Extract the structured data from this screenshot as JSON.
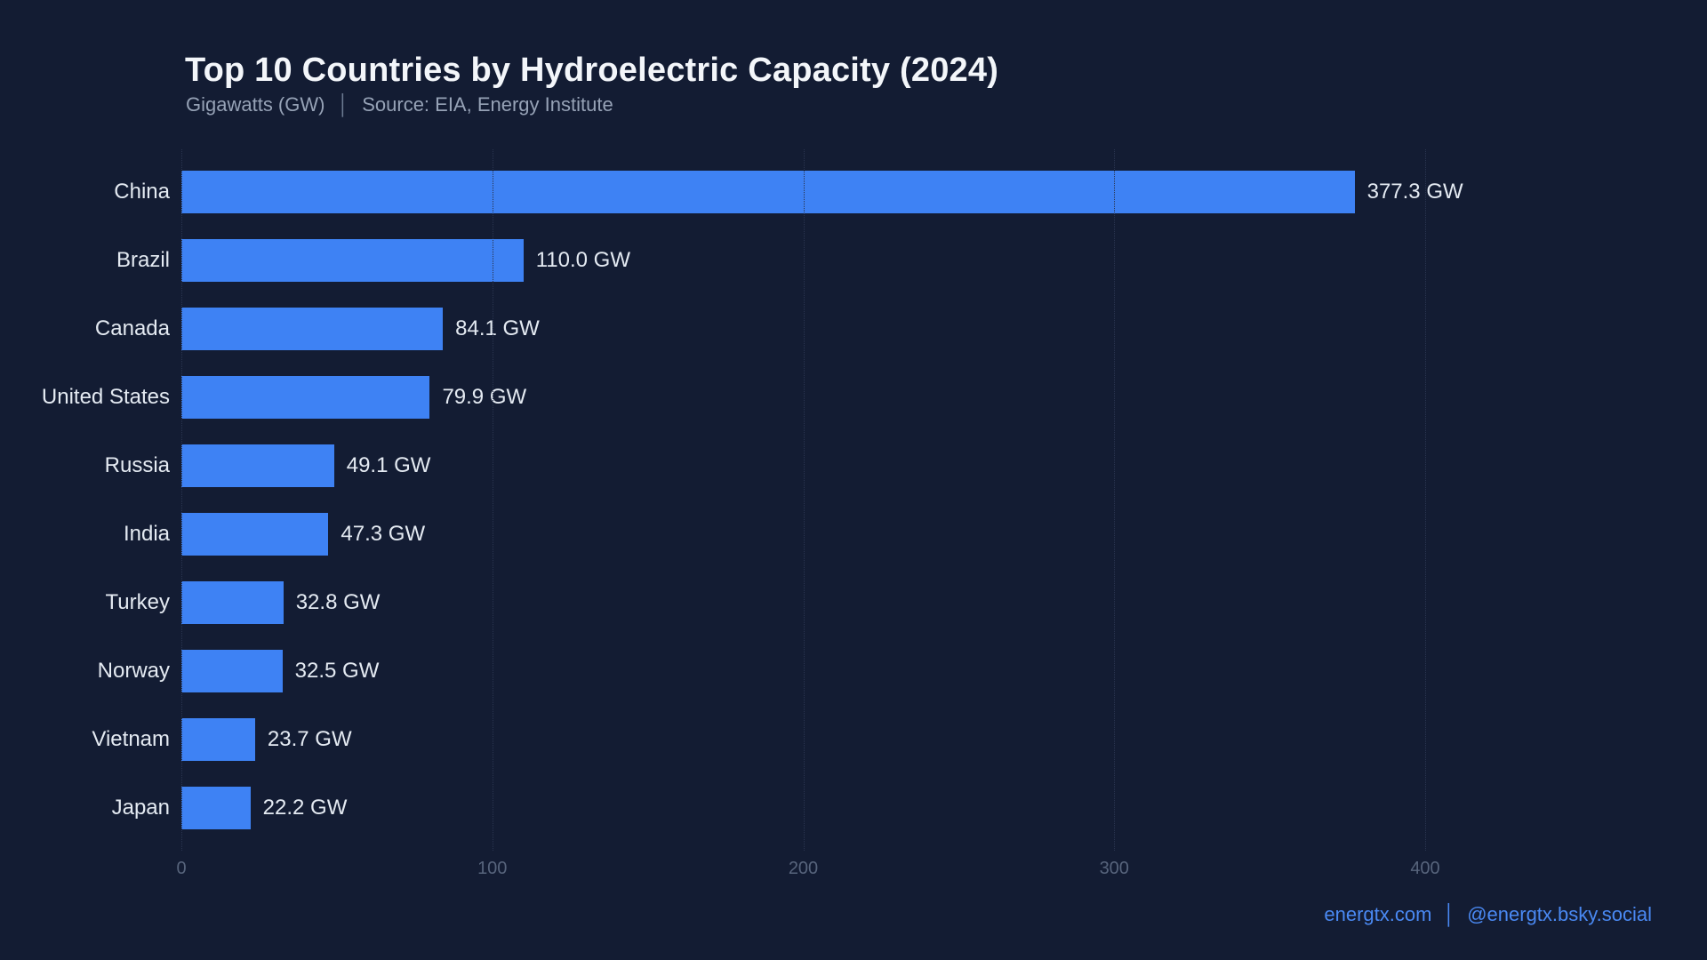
{
  "header": {
    "title": "Top 10 Countries by Hydroelectric Capacity (2024)",
    "subtitle_unit": "Gigawatts (GW)",
    "subtitle_separator": "│",
    "subtitle_source": "Source: EIA, Energy Institute"
  },
  "footer": {
    "website": "energtx.com",
    "separator": "│",
    "social_handle": "@energtx.bsky.social"
  },
  "colors": {
    "background": "#131c33",
    "bar": "#3e82f4",
    "title_text": "#f3f6fa",
    "subtitle_text": "#96a2b6",
    "label_text": "#e4eaf2",
    "axis_tick_text": "#57647c",
    "gridline": "#2a3550",
    "footer_link": "#4a89f3"
  },
  "chart_data": {
    "type": "bar",
    "orientation": "horizontal",
    "title": "Top 10 Countries by Hydroelectric Capacity (2024)",
    "ylabel": "",
    "xlabel": "Gigawatts (GW)",
    "source": "EIA, Energy Institute",
    "categories": [
      "China",
      "Brazil",
      "Canada",
      "United States",
      "Russia",
      "India",
      "Turkey",
      "Norway",
      "Vietnam",
      "Japan"
    ],
    "values": [
      377.3,
      110.0,
      84.1,
      79.9,
      49.1,
      47.3,
      32.8,
      32.5,
      23.7,
      22.2
    ],
    "value_labels": [
      "377.3 GW",
      "110.0 GW",
      "84.1 GW",
      "79.9 GW",
      "49.1 GW",
      "47.3 GW",
      "32.8 GW",
      "32.5 GW",
      "23.7 GW",
      "22.2 GW"
    ],
    "x_ticks": [
      0,
      100,
      200,
      300,
      400
    ],
    "xlim": [
      0,
      400
    ],
    "grid": "vertical dotted",
    "legend": "none"
  }
}
